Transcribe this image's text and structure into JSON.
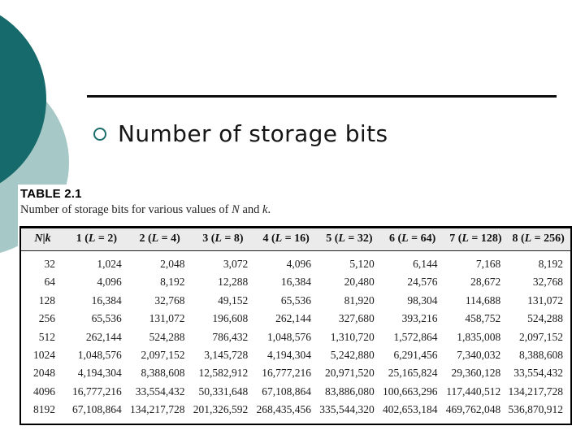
{
  "slide": {
    "title": "Number of storage bits",
    "colors": {
      "circle_dark": "#176a6b",
      "circle_light": "#a6c9c7",
      "bullet_ring": "#1c6e6e",
      "header_bg": "#ebebeb"
    }
  },
  "table": {
    "label": "TABLE 2.1",
    "caption": "Number of storage bits for various values of N and k.",
    "headers": [
      "N|k",
      "1 (L = 2)",
      "2 (L = 4)",
      "3 (L = 8)",
      "4 (L = 16)",
      "5 (L = 32)",
      "6 (L = 64)",
      "7 (L = 128)",
      "8 (L = 256)"
    ],
    "rows": [
      [
        "32",
        "1,024",
        "2,048",
        "3,072",
        "4,096",
        "5,120",
        "6,144",
        "7,168",
        "8,192"
      ],
      [
        "64",
        "4,096",
        "8,192",
        "12,288",
        "16,384",
        "20,480",
        "24,576",
        "28,672",
        "32,768"
      ],
      [
        "128",
        "16,384",
        "32,768",
        "49,152",
        "65,536",
        "81,920",
        "98,304",
        "114,688",
        "131,072"
      ],
      [
        "256",
        "65,536",
        "131,072",
        "196,608",
        "262,144",
        "327,680",
        "393,216",
        "458,752",
        "524,288"
      ],
      [
        "512",
        "262,144",
        "524,288",
        "786,432",
        "1,048,576",
        "1,310,720",
        "1,572,864",
        "1,835,008",
        "2,097,152"
      ],
      [
        "1024",
        "1,048,576",
        "2,097,152",
        "3,145,728",
        "4,194,304",
        "5,242,880",
        "6,291,456",
        "7,340,032",
        "8,388,608"
      ],
      [
        "2048",
        "4,194,304",
        "8,388,608",
        "12,582,912",
        "16,777,216",
        "20,971,520",
        "25,165,824",
        "29,360,128",
        "33,554,432"
      ],
      [
        "4096",
        "16,777,216",
        "33,554,432",
        "50,331,648",
        "67,108,864",
        "83,886,080",
        "100,663,296",
        "117,440,512",
        "134,217,728"
      ],
      [
        "8192",
        "67,108,864",
        "134,217,728",
        "201,326,592",
        "268,435,456",
        "335,544,320",
        "402,653,184",
        "469,762,048",
        "536,870,912"
      ]
    ]
  }
}
